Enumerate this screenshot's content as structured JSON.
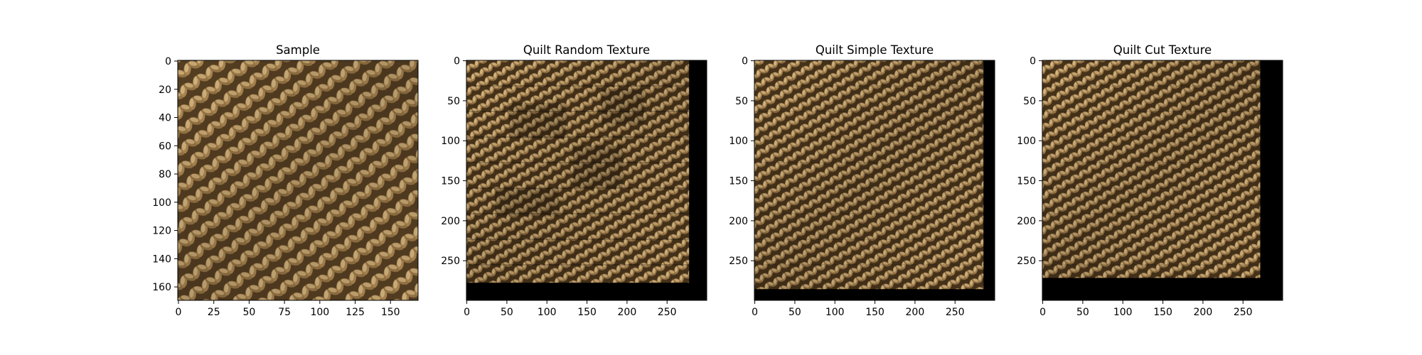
{
  "chart_data": [
    {
      "type": "image",
      "title": "Sample",
      "image_extent": [
        170,
        170
      ],
      "xlim": [
        -0.5,
        169.5
      ],
      "ylim": [
        169.5,
        -0.5
      ],
      "xticks": [
        0,
        25,
        50,
        75,
        100,
        125,
        150
      ],
      "yticks": [
        0,
        20,
        40,
        60,
        80,
        100,
        120,
        140,
        160
      ],
      "texture_region": {
        "x_end": 170,
        "y_end": 170
      },
      "colors": {
        "dark": "#3f2c16",
        "mid": "#8a6a3c",
        "light": "#e2c48c"
      }
    },
    {
      "type": "image",
      "title": "Quilt Random Texture",
      "image_extent": [
        300,
        300
      ],
      "xlim": [
        -0.5,
        299.5
      ],
      "ylim": [
        299.5,
        -0.5
      ],
      "xticks": [
        0,
        50,
        100,
        150,
        200,
        250
      ],
      "yticks": [
        50,
        100,
        150,
        200,
        250
      ],
      "ytick_zero_top": 0,
      "texture_region": {
        "x_end": 278,
        "y_end": 278
      },
      "colors": {
        "dark": "#2e2113",
        "mid": "#7a5b33",
        "light": "#e8c994"
      }
    },
    {
      "type": "image",
      "title": "Quilt Simple Texture",
      "image_extent": [
        300,
        300
      ],
      "xlim": [
        -0.5,
        299.5
      ],
      "ylim": [
        299.5,
        -0.5
      ],
      "xticks": [
        0,
        50,
        100,
        150,
        200,
        250
      ],
      "yticks": [
        50,
        100,
        150,
        200,
        250
      ],
      "ytick_zero_top": 0,
      "texture_region": {
        "x_end": 286,
        "y_end": 286
      },
      "colors": {
        "dark": "#33250f",
        "mid": "#80603a",
        "light": "#e6c690"
      }
    },
    {
      "type": "image",
      "title": "Quilt Cut Texture",
      "image_extent": [
        300,
        300
      ],
      "xlim": [
        -0.5,
        299.5
      ],
      "ylim": [
        299.5,
        -0.5
      ],
      "xticks": [
        0,
        50,
        100,
        150,
        200,
        250
      ],
      "yticks": [
        50,
        100,
        150,
        200,
        250
      ],
      "ytick_zero_top": 0,
      "texture_region": {
        "x_end": 272,
        "y_end": 272
      },
      "colors": {
        "dark": "#35260f",
        "mid": "#82623a",
        "light": "#e4c48e"
      }
    }
  ],
  "background_fill": "#000000"
}
